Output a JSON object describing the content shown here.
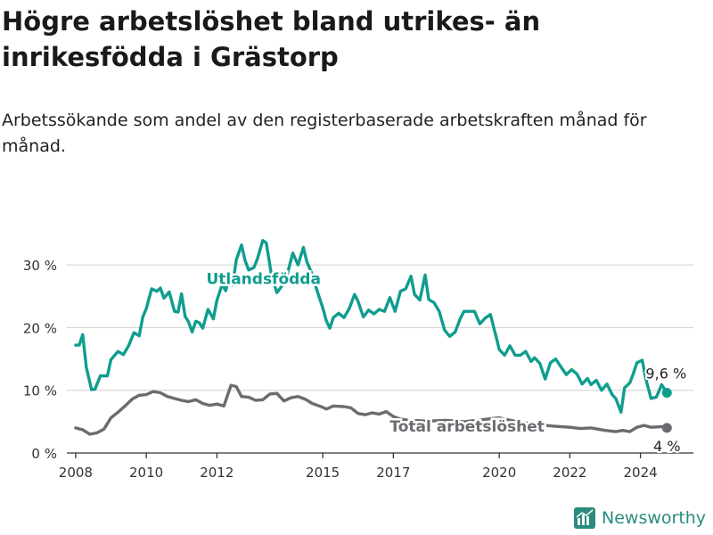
{
  "title": "Högre arbetslöshet bland utrikes- än inrikesfödda i Grästorp",
  "subtitle": "Arbetssökande som andel av den registerbaserade arbetskraften månad för månad.",
  "brand": {
    "name": "Newsworthy",
    "icon": "bar-chart-logo-icon",
    "color": "#2a8b7e"
  },
  "chart_data": {
    "type": "line",
    "xlim": [
      2007.75,
      2025.5
    ],
    "ylim": [
      0,
      35
    ],
    "grid": true,
    "x_ticks": [
      2008,
      2010,
      2012,
      2015,
      2017,
      2020,
      2022,
      2024
    ],
    "x_tick_labels": [
      "2008",
      "2010",
      "2012",
      "2015",
      "2017",
      "2020",
      "2022",
      "2024"
    ],
    "y_ticks": [
      0,
      10,
      20,
      30
    ],
    "y_tick_labels": [
      "0 %",
      "10 %",
      "20 %",
      "30 %"
    ],
    "series": [
      {
        "name": "Utlandsfödda",
        "color": "#0f9d8e",
        "end_label": "9,6 %",
        "points": [
          [
            2008.0,
            17.2
          ],
          [
            2008.1,
            17.2
          ],
          [
            2008.2,
            18.9
          ],
          [
            2008.3,
            13.7
          ],
          [
            2008.45,
            10.1
          ],
          [
            2008.55,
            10.2
          ],
          [
            2008.7,
            12.3
          ],
          [
            2008.9,
            12.3
          ],
          [
            2009.0,
            14.9
          ],
          [
            2009.2,
            16.2
          ],
          [
            2009.35,
            15.7
          ],
          [
            2009.5,
            17.1
          ],
          [
            2009.65,
            19.2
          ],
          [
            2009.8,
            18.7
          ],
          [
            2009.9,
            21.7
          ],
          [
            2010.0,
            23.0
          ],
          [
            2010.15,
            26.2
          ],
          [
            2010.3,
            25.8
          ],
          [
            2010.4,
            26.3
          ],
          [
            2010.5,
            24.7
          ],
          [
            2010.65,
            25.7
          ],
          [
            2010.8,
            22.6
          ],
          [
            2010.9,
            22.5
          ],
          [
            2011.0,
            25.4
          ],
          [
            2011.1,
            21.8
          ],
          [
            2011.2,
            20.9
          ],
          [
            2011.3,
            19.3
          ],
          [
            2011.4,
            21.0
          ],
          [
            2011.5,
            20.8
          ],
          [
            2011.6,
            19.9
          ],
          [
            2011.75,
            22.9
          ],
          [
            2011.9,
            21.4
          ],
          [
            2012.0,
            24.3
          ],
          [
            2012.15,
            26.9
          ],
          [
            2012.25,
            25.9
          ],
          [
            2012.35,
            28.0
          ],
          [
            2012.45,
            26.8
          ],
          [
            2012.55,
            30.8
          ],
          [
            2012.7,
            33.2
          ],
          [
            2012.8,
            30.7
          ],
          [
            2012.9,
            29.2
          ],
          [
            2013.05,
            29.6
          ],
          [
            2013.15,
            31.0
          ],
          [
            2013.3,
            33.9
          ],
          [
            2013.4,
            33.5
          ],
          [
            2013.55,
            28.3
          ],
          [
            2013.7,
            25.6
          ],
          [
            2013.85,
            26.7
          ],
          [
            2014.0,
            28.6
          ],
          [
            2014.15,
            31.9
          ],
          [
            2014.3,
            30.0
          ],
          [
            2014.45,
            32.8
          ],
          [
            2014.55,
            30.5
          ],
          [
            2014.7,
            28.5
          ],
          [
            2014.85,
            25.7
          ],
          [
            2015.0,
            23.2
          ],
          [
            2015.1,
            21.1
          ],
          [
            2015.2,
            19.9
          ],
          [
            2015.3,
            21.6
          ],
          [
            2015.45,
            22.3
          ],
          [
            2015.6,
            21.6
          ],
          [
            2015.75,
            23.0
          ],
          [
            2015.9,
            25.3
          ],
          [
            2016.0,
            24.2
          ],
          [
            2016.15,
            21.7
          ],
          [
            2016.3,
            22.8
          ],
          [
            2016.45,
            22.2
          ],
          [
            2016.6,
            22.9
          ],
          [
            2016.75,
            22.6
          ],
          [
            2016.9,
            24.8
          ],
          [
            2017.05,
            22.6
          ],
          [
            2017.2,
            25.8
          ],
          [
            2017.35,
            26.2
          ],
          [
            2017.5,
            28.2
          ],
          [
            2017.6,
            25.3
          ],
          [
            2017.75,
            24.4
          ],
          [
            2017.9,
            28.4
          ],
          [
            2018.0,
            24.5
          ],
          [
            2018.15,
            24.0
          ],
          [
            2018.3,
            22.6
          ],
          [
            2018.45,
            19.6
          ],
          [
            2018.6,
            18.6
          ],
          [
            2018.75,
            19.3
          ],
          [
            2018.9,
            21.5
          ],
          [
            2019.0,
            22.6
          ],
          [
            2019.15,
            22.6
          ],
          [
            2019.3,
            22.6
          ],
          [
            2019.45,
            20.6
          ],
          [
            2019.6,
            21.5
          ],
          [
            2019.75,
            22.1
          ],
          [
            2019.9,
            18.8
          ],
          [
            2020.0,
            16.5
          ],
          [
            2020.15,
            15.6
          ],
          [
            2020.3,
            17.1
          ],
          [
            2020.45,
            15.6
          ],
          [
            2020.6,
            15.6
          ],
          [
            2020.75,
            16.2
          ],
          [
            2020.9,
            14.6
          ],
          [
            2021.0,
            15.2
          ],
          [
            2021.15,
            14.3
          ],
          [
            2021.3,
            11.8
          ],
          [
            2021.45,
            14.4
          ],
          [
            2021.6,
            15.0
          ],
          [
            2021.75,
            13.7
          ],
          [
            2021.9,
            12.5
          ],
          [
            2022.05,
            13.3
          ],
          [
            2022.2,
            12.6
          ],
          [
            2022.35,
            11.0
          ],
          [
            2022.5,
            11.9
          ],
          [
            2022.6,
            10.9
          ],
          [
            2022.75,
            11.6
          ],
          [
            2022.9,
            10.0
          ],
          [
            2023.05,
            11.0
          ],
          [
            2023.2,
            9.3
          ],
          [
            2023.3,
            8.7
          ],
          [
            2023.45,
            6.5
          ],
          [
            2023.55,
            10.4
          ],
          [
            2023.7,
            11.2
          ],
          [
            2023.8,
            12.7
          ],
          [
            2023.9,
            14.4
          ],
          [
            2024.05,
            14.8
          ],
          [
            2024.15,
            11.9
          ],
          [
            2024.3,
            8.7
          ],
          [
            2024.45,
            8.9
          ],
          [
            2024.6,
            10.9
          ],
          [
            2024.75,
            9.6
          ]
        ]
      },
      {
        "name": "Total arbetslöshet",
        "color": "#6b6b70",
        "end_label": "4 %",
        "points": [
          [
            2008.0,
            4.0
          ],
          [
            2008.2,
            3.7
          ],
          [
            2008.4,
            3.0
          ],
          [
            2008.6,
            3.2
          ],
          [
            2008.8,
            3.8
          ],
          [
            2009.0,
            5.6
          ],
          [
            2009.2,
            6.5
          ],
          [
            2009.4,
            7.5
          ],
          [
            2009.6,
            8.6
          ],
          [
            2009.8,
            9.2
          ],
          [
            2010.0,
            9.3
          ],
          [
            2010.2,
            9.8
          ],
          [
            2010.4,
            9.6
          ],
          [
            2010.6,
            9.0
          ],
          [
            2010.8,
            8.7
          ],
          [
            2011.0,
            8.4
          ],
          [
            2011.2,
            8.2
          ],
          [
            2011.4,
            8.5
          ],
          [
            2011.6,
            7.9
          ],
          [
            2011.8,
            7.6
          ],
          [
            2012.0,
            7.8
          ],
          [
            2012.2,
            7.5
          ],
          [
            2012.4,
            10.8
          ],
          [
            2012.55,
            10.6
          ],
          [
            2012.7,
            9.0
          ],
          [
            2012.9,
            8.9
          ],
          [
            2013.1,
            8.4
          ],
          [
            2013.3,
            8.5
          ],
          [
            2013.5,
            9.4
          ],
          [
            2013.7,
            9.5
          ],
          [
            2013.9,
            8.3
          ],
          [
            2014.1,
            8.8
          ],
          [
            2014.3,
            9.0
          ],
          [
            2014.5,
            8.6
          ],
          [
            2014.7,
            7.9
          ],
          [
            2014.9,
            7.5
          ],
          [
            2015.0,
            7.3
          ],
          [
            2015.1,
            7.0
          ],
          [
            2015.3,
            7.5
          ],
          [
            2015.6,
            7.4
          ],
          [
            2015.8,
            7.2
          ],
          [
            2016.0,
            6.3
          ],
          [
            2016.2,
            6.1
          ],
          [
            2016.4,
            6.4
          ],
          [
            2016.6,
            6.2
          ],
          [
            2016.8,
            6.6
          ],
          [
            2017.0,
            5.8
          ],
          [
            2017.2,
            5.4
          ],
          [
            2017.5,
            5.2
          ],
          [
            2018.0,
            5.1
          ],
          [
            2018.5,
            5.2
          ],
          [
            2019.0,
            5.0
          ],
          [
            2019.5,
            5.3
          ],
          [
            2020.0,
            5.6
          ],
          [
            2020.5,
            5.0
          ],
          [
            2021.0,
            4.6
          ],
          [
            2021.5,
            4.3
          ],
          [
            2022.0,
            4.1
          ],
          [
            2022.3,
            3.9
          ],
          [
            2022.6,
            4.0
          ],
          [
            2023.0,
            3.6
          ],
          [
            2023.3,
            3.4
          ],
          [
            2023.5,
            3.6
          ],
          [
            2023.7,
            3.4
          ],
          [
            2023.9,
            4.1
          ],
          [
            2024.1,
            4.4
          ],
          [
            2024.3,
            4.1
          ],
          [
            2024.6,
            4.2
          ],
          [
            2024.75,
            4.0
          ]
        ]
      }
    ]
  }
}
